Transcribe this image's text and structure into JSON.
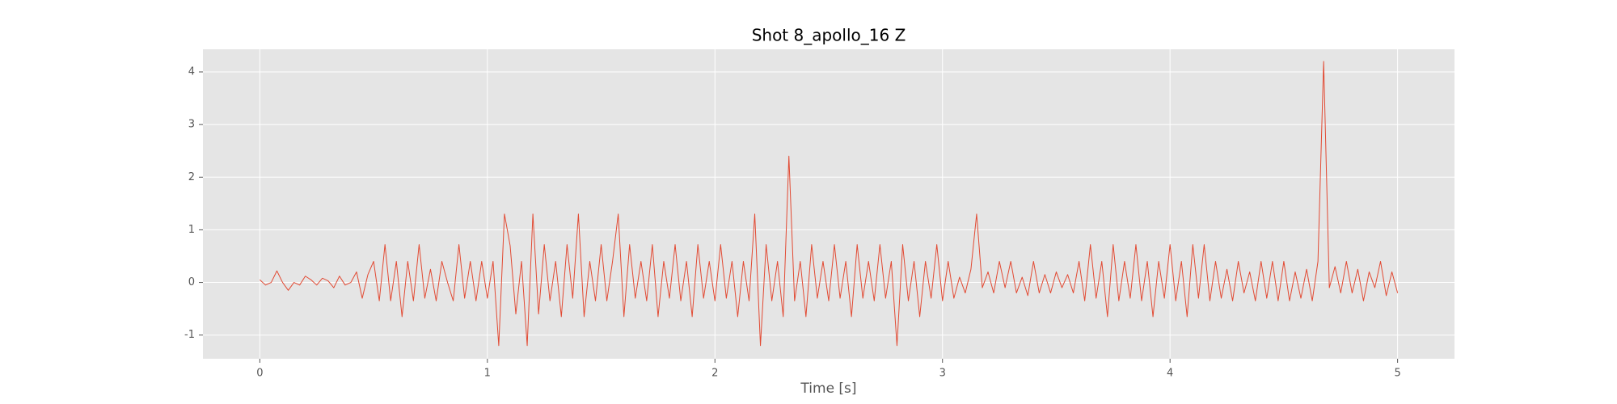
{
  "chart_data": {
    "type": "line",
    "title": "Shot 8_apollo_16 Z",
    "x_label": "Time [s]",
    "color": "#E24A33",
    "grid": true,
    "xlim": [
      -0.25,
      5.25
    ],
    "xticks": [
      0,
      1,
      2,
      3,
      4,
      5
    ],
    "ylim": [
      -1.45,
      4.43
    ],
    "yticks": [
      -1,
      0,
      1,
      2,
      3,
      4
    ],
    "x": [
      0,
      0.025,
      0.05,
      0.075,
      0.1,
      0.125,
      0.15,
      0.175,
      0.2,
      0.225,
      0.25,
      0.275,
      0.3,
      0.325,
      0.35,
      0.375,
      0.4,
      0.425,
      0.45,
      0.475,
      0.5,
      0.525,
      0.55,
      0.575,
      0.6,
      0.625,
      0.65,
      0.675,
      0.7,
      0.725,
      0.75,
      0.775,
      0.8,
      0.825,
      0.85,
      0.875,
      0.9,
      0.925,
      0.95,
      0.975,
      1,
      1.025,
      1.05,
      1.075,
      1.1,
      1.125,
      1.15,
      1.175,
      1.2,
      1.225,
      1.25,
      1.275,
      1.3,
      1.325,
      1.35,
      1.375,
      1.4,
      1.425,
      1.45,
      1.475,
      1.5,
      1.525,
      1.55,
      1.575,
      1.6,
      1.625,
      1.65,
      1.675,
      1.7,
      1.725,
      1.75,
      1.775,
      1.8,
      1.825,
      1.85,
      1.875,
      1.9,
      1.925,
      1.95,
      1.975,
      2,
      2.025,
      2.05,
      2.075,
      2.1,
      2.125,
      2.15,
      2.175,
      2.2,
      2.225,
      2.25,
      2.275,
      2.3,
      2.325,
      2.35,
      2.375,
      2.4,
      2.425,
      2.45,
      2.475,
      2.5,
      2.525,
      2.55,
      2.575,
      2.6,
      2.625,
      2.65,
      2.675,
      2.7,
      2.725,
      2.75,
      2.775,
      2.8,
      2.825,
      2.85,
      2.875,
      2.9,
      2.925,
      2.95,
      2.975,
      3,
      3.025,
      3.05,
      3.075,
      3.1,
      3.125,
      3.15,
      3.175,
      3.2,
      3.225,
      3.25,
      3.275,
      3.3,
      3.325,
      3.35,
      3.375,
      3.4,
      3.425,
      3.45,
      3.475,
      3.5,
      3.525,
      3.55,
      3.575,
      3.6,
      3.625,
      3.65,
      3.675,
      3.7,
      3.725,
      3.75,
      3.775,
      3.8,
      3.825,
      3.85,
      3.875,
      3.9,
      3.925,
      3.95,
      3.975,
      4,
      4.025,
      4.05,
      4.075,
      4.1,
      4.125,
      4.15,
      4.175,
      4.2,
      4.225,
      4.25,
      4.275,
      4.3,
      4.325,
      4.35,
      4.375,
      4.4,
      4.425,
      4.45,
      4.475,
      4.5,
      4.525,
      4.55,
      4.575,
      4.6,
      4.625,
      4.65,
      4.675,
      4.7,
      4.725,
      4.75,
      4.775,
      4.8,
      4.825,
      4.85,
      4.875,
      4.9,
      4.925,
      4.95,
      4.975,
      5
    ],
    "values": [
      0.05,
      -0.05,
      0.0,
      0.22,
      0.0,
      -0.15,
      0.0,
      -0.05,
      0.12,
      0.05,
      -0.05,
      0.08,
      0.03,
      -0.1,
      0.12,
      -0.05,
      0.0,
      0.2,
      -0.3,
      0.15,
      0.4,
      -0.35,
      0.72,
      -0.35,
      0.4,
      -0.65,
      0.4,
      -0.35,
      0.72,
      -0.3,
      0.25,
      -0.35,
      0.4,
      0.0,
      -0.35,
      0.72,
      -0.3,
      0.4,
      -0.35,
      0.4,
      -0.3,
      0.4,
      -1.2,
      1.3,
      0.7,
      -0.6,
      0.4,
      -1.2,
      1.3,
      -0.6,
      0.72,
      -0.35,
      0.4,
      -0.65,
      0.72,
      -0.3,
      1.3,
      -0.65,
      0.4,
      -0.35,
      0.72,
      -0.35,
      0.4,
      1.3,
      -0.65,
      0.72,
      -0.3,
      0.4,
      -0.35,
      0.72,
      -0.65,
      0.4,
      -0.3,
      0.72,
      -0.35,
      0.4,
      -0.65,
      0.72,
      -0.3,
      0.4,
      -0.35,
      0.72,
      -0.3,
      0.4,
      -0.65,
      0.4,
      -0.35,
      1.3,
      -1.2,
      0.72,
      -0.35,
      0.4,
      -0.65,
      2.4,
      -0.35,
      0.4,
      -0.65,
      0.72,
      -0.3,
      0.4,
      -0.35,
      0.72,
      -0.3,
      0.4,
      -0.65,
      0.72,
      -0.3,
      0.4,
      -0.35,
      0.72,
      -0.3,
      0.4,
      -1.2,
      0.72,
      -0.35,
      0.4,
      -0.65,
      0.4,
      -0.3,
      0.72,
      -0.35,
      0.4,
      -0.3,
      0.1,
      -0.2,
      0.25,
      1.3,
      -0.1,
      0.2,
      -0.2,
      0.4,
      -0.1,
      0.4,
      -0.2,
      0.1,
      -0.25,
      0.4,
      -0.2,
      0.15,
      -0.2,
      0.2,
      -0.1,
      0.15,
      -0.2,
      0.4,
      -0.35,
      0.72,
      -0.3,
      0.4,
      -0.65,
      0.72,
      -0.35,
      0.4,
      -0.3,
      0.72,
      -0.35,
      0.4,
      -0.65,
      0.4,
      -0.3,
      0.72,
      -0.35,
      0.4,
      -0.65,
      0.72,
      -0.3,
      0.72,
      -0.35,
      0.4,
      -0.3,
      0.25,
      -0.35,
      0.4,
      -0.2,
      0.2,
      -0.35,
      0.4,
      -0.3,
      0.4,
      -0.35,
      0.4,
      -0.35,
      0.2,
      -0.3,
      0.25,
      -0.35,
      0.4,
      4.2,
      -0.1,
      0.3,
      -0.2,
      0.4,
      -0.2,
      0.25,
      -0.35,
      0.2,
      -0.1,
      0.4,
      -0.25,
      0.2,
      -0.2
    ]
  }
}
